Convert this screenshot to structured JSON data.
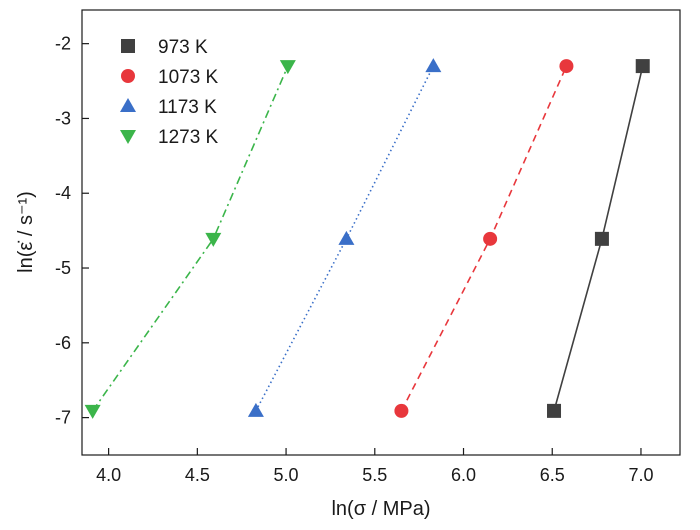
{
  "chart_data": {
    "type": "scatter",
    "title": "",
    "xlabel": "ln(σ / MPa)",
    "ylabel": "ln(ε̇ / s⁻¹)",
    "xlim": [
      3.85,
      7.22
    ],
    "ylim": [
      -7.5,
      -1.55
    ],
    "xticks": [
      4.0,
      4.5,
      5.0,
      5.5,
      6.0,
      6.5,
      7.0
    ],
    "yticks": [
      -2,
      -3,
      -4,
      -5,
      -6,
      -7
    ],
    "xtick_labels": [
      "4.0",
      "4.5",
      "5.0",
      "5.5",
      "6.0",
      "6.5",
      "7.0"
    ],
    "ytick_labels": [
      "-2",
      "-3",
      "-4",
      "-5",
      "-6",
      "-7"
    ],
    "grid": false,
    "legend_position": "top-left",
    "series": [
      {
        "name": "973 K",
        "marker": "square",
        "color": "#404040",
        "line_style": "solid",
        "x": [
          6.51,
          6.78,
          7.01
        ],
        "y": [
          -6.91,
          -4.61,
          -2.3
        ]
      },
      {
        "name": "1073 K",
        "marker": "circle",
        "color": "#e8373c",
        "line_style": "dashed",
        "x": [
          5.65,
          6.15,
          6.58
        ],
        "y": [
          -6.91,
          -4.61,
          -2.3
        ]
      },
      {
        "name": "1173 K",
        "marker": "triangle-up",
        "color": "#3a6fc8",
        "line_style": "dotted",
        "x": [
          4.83,
          5.34,
          5.83
        ],
        "y": [
          -6.91,
          -4.61,
          -2.3
        ]
      },
      {
        "name": "1273 K",
        "marker": "triangle-down",
        "color": "#3bb54a",
        "line_style": "dashdot",
        "x": [
          3.91,
          4.59,
          5.01
        ],
        "y": [
          -6.91,
          -4.61,
          -2.3
        ]
      }
    ]
  }
}
